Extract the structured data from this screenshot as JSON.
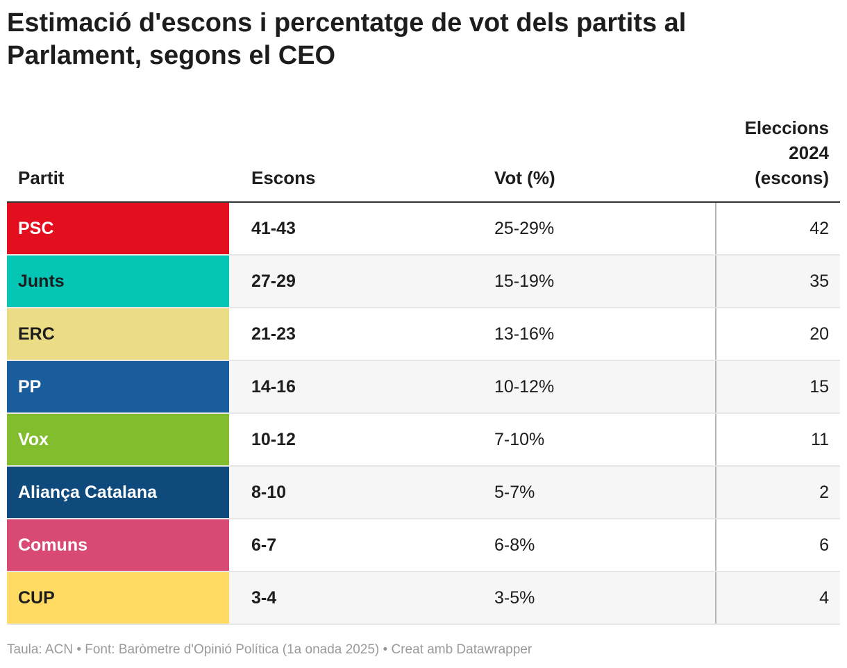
{
  "chart_data": {
    "type": "table",
    "title": "Estimació d'escons i percentatge de vot dels partits al Parlament, segons el CEO",
    "columns": [
      "Partit",
      "Escons",
      "Vot (%)",
      "Eleccions 2024 (escons)"
    ],
    "rows": [
      {
        "party": "PSC",
        "seats": "41-43",
        "vote": "25-29%",
        "elections_2024": "42",
        "color": "#e30f1f",
        "text_color": "#ffffff"
      },
      {
        "party": "Junts",
        "seats": "27-29",
        "vote": "15-19%",
        "elections_2024": "35",
        "color": "#05c5b5",
        "text_color": "#1d1d1d"
      },
      {
        "party": "ERC",
        "seats": "21-23",
        "vote": "13-16%",
        "elections_2024": "20",
        "color": "#ebdc86",
        "text_color": "#1d1d1d"
      },
      {
        "party": "PP",
        "seats": "14-16",
        "vote": "10-12%",
        "elections_2024": "15",
        "color": "#1a5d9d",
        "text_color": "#ffffff"
      },
      {
        "party": "Vox",
        "seats": "10-12",
        "vote": "7-10%",
        "elections_2024": "11",
        "color": "#82bd2e",
        "text_color": "#ffffff"
      },
      {
        "party": "Aliança Catalana",
        "seats": "8-10",
        "vote": "5-7%",
        "elections_2024": "2",
        "color": "#0f4a7d",
        "text_color": "#ffffff"
      },
      {
        "party": "Comuns",
        "seats": "6-7",
        "vote": "6-8%",
        "elections_2024": "6",
        "color": "#d84a73",
        "text_color": "#ffffff"
      },
      {
        "party": "CUP",
        "seats": "3-4",
        "vote": "3-5%",
        "elections_2024": "4",
        "color": "#ffdb63",
        "text_color": "#1d1d1d"
      }
    ]
  },
  "header": {
    "partit": "Partit",
    "escons": "Escons",
    "vot": "Vot (%)",
    "eleccions_line1": "Eleccions",
    "eleccions_line2": "2024",
    "eleccions_line3": "(escons)"
  },
  "footer": "Taula: ACN • Font: Baròmetre d'Opinió Política (1a onada 2025)  • Creat amb Datawrapper"
}
